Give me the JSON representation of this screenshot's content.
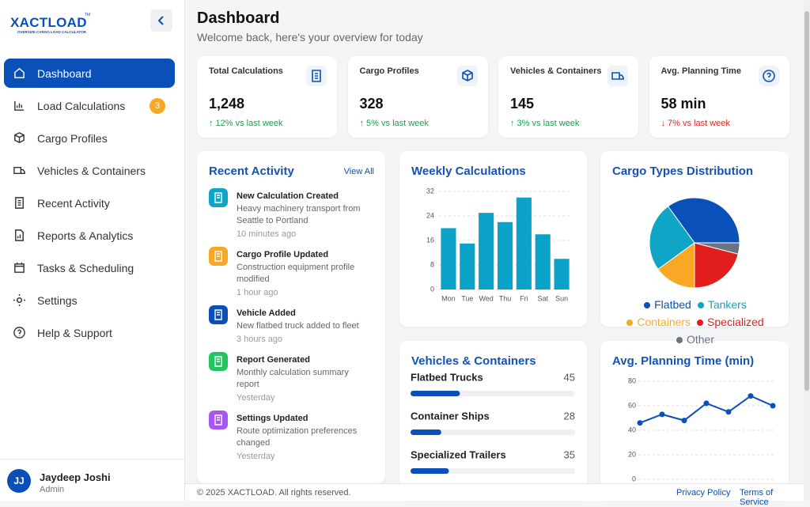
{
  "brand": {
    "name": "XACTLOAD",
    "mark": "TM",
    "tagline": "OVERSIZE CARGO LOAD CALCULATOR"
  },
  "nav": [
    {
      "label": "Dashboard",
      "active": true
    },
    {
      "label": "Load Calculations",
      "badge": 3
    },
    {
      "label": "Cargo Profiles"
    },
    {
      "label": "Vehicles & Containers"
    },
    {
      "label": "Recent Activity"
    },
    {
      "label": "Reports & Analytics"
    },
    {
      "label": "Tasks & Scheduling"
    },
    {
      "label": "Settings"
    },
    {
      "label": "Help & Support"
    }
  ],
  "user": {
    "initials": "JJ",
    "name": "Jaydeep Joshi",
    "role": "Admin"
  },
  "header": {
    "title": "Dashboard",
    "subtitle": "Welcome back, here's your overview for today"
  },
  "stats": [
    {
      "label": "Total Calculations",
      "value": "1,248",
      "change": "↑ 12% vs last week",
      "trend": "up"
    },
    {
      "label": "Cargo Profiles",
      "value": "328",
      "change": "↑ 5% vs last week",
      "trend": "up"
    },
    {
      "label": "Vehicles & Containers",
      "value": "145",
      "change": "↑ 3% vs last week",
      "trend": "up"
    },
    {
      "label": "Avg. Planning Time",
      "value": "58 min",
      "change": "↓ 7% vs last week",
      "trend": "down"
    }
  ],
  "recent_activity": {
    "title": "Recent Activity",
    "link": "View All",
    "items": [
      {
        "title": "New Calculation Created",
        "description": "Heavy machinery transport from Seattle to Portland",
        "time": "10 minutes ago",
        "color": "#0ea5c6"
      },
      {
        "title": "Cargo Profile Updated",
        "description": "Construction equipment profile modified",
        "time": "1 hour ago",
        "color": "#f9a825"
      },
      {
        "title": "Vehicle Added",
        "description": "New flatbed truck added to fleet",
        "time": "3 hours ago",
        "color": "#0b4fb8"
      },
      {
        "title": "Report Generated",
        "description": "Monthly calculation summary report",
        "time": "Yesterday",
        "color": "#22c55e"
      },
      {
        "title": "Settings Updated",
        "description": "Route optimization preferences changed",
        "time": "Yesterday",
        "color": "#a855f7"
      }
    ]
  },
  "chart_data": [
    {
      "type": "bar",
      "title": "Weekly Calculations",
      "categories": [
        "Mon",
        "Tue",
        "Wed",
        "Thu",
        "Fri",
        "Sat",
        "Sun"
      ],
      "values": [
        20,
        15,
        25,
        22,
        30,
        18,
        10
      ],
      "color": "#0aa2c6",
      "ylim": [
        0,
        32
      ],
      "yticks": [
        0,
        8,
        16,
        24,
        32
      ],
      "grid": true
    },
    {
      "type": "pie",
      "title": "Cargo Types Distribution",
      "categories": [
        "Flatbed",
        "Tankers",
        "Containers",
        "Specialized",
        "Other"
      ],
      "values": [
        35,
        25,
        15,
        21,
        4
      ],
      "colors": [
        "#0b4fb8",
        "#0ea5c6",
        "#f9a825",
        "#e11d1d",
        "#6b7280"
      ]
    },
    {
      "type": "progress",
      "title": "Vehicles & Containers",
      "categories": [
        "Flatbed Trucks",
        "Container Ships",
        "Specialized Trailers"
      ],
      "values": [
        45,
        28,
        35
      ],
      "xlim": [
        0,
        150
      ],
      "color": "#0b4fb8"
    },
    {
      "type": "line",
      "title": "Avg. Planning Time (min)",
      "categories": [
        null,
        null,
        null,
        null,
        null,
        null,
        null
      ],
      "values": [
        46,
        53,
        48,
        62,
        55,
        68,
        60
      ],
      "color": "#0b4fb8",
      "ylim": [
        0,
        80
      ],
      "yticks": [
        0,
        20,
        40,
        60,
        80
      ],
      "grid": true
    }
  ],
  "footer": {
    "copyright": "© 2025 XACTLOAD. All rights reserved.",
    "links": [
      "Privacy Policy",
      "Terms of Service"
    ]
  }
}
